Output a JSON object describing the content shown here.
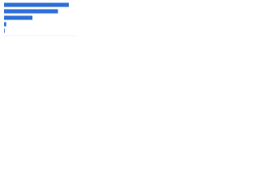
{
  "chart_data": {
    "type": "bar",
    "orientation": "horizontal",
    "categories": [
      null,
      null,
      null,
      null,
      null
    ],
    "values": [
      89,
      74,
      39,
      3,
      1
    ],
    "color": "#2f6fd6",
    "xlim": [
      0,
      100
    ],
    "grid": true
  }
}
